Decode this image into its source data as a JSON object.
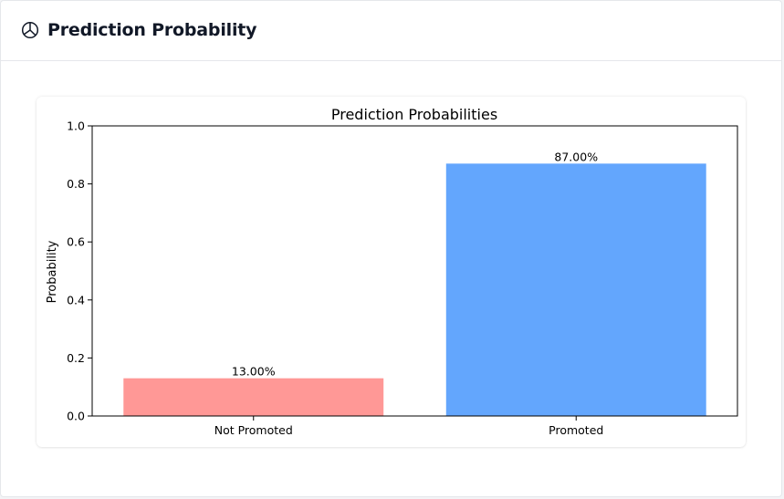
{
  "header": {
    "title": "Prediction Probability",
    "icon": "pie-chart-icon"
  },
  "chart_data": {
    "type": "bar",
    "title": "Prediction Probabilities",
    "xlabel": "",
    "ylabel": "Probability",
    "categories": [
      "Not Promoted",
      "Promoted"
    ],
    "values": [
      0.13,
      0.87
    ],
    "data_labels": [
      "13.00%",
      "87.00%"
    ],
    "colors": [
      "#ff9896",
      "#63a6fd"
    ],
    "ylim": [
      0,
      1.0
    ],
    "yticks": [
      "0.0",
      "0.2",
      "0.4",
      "0.6",
      "0.8",
      "1.0"
    ],
    "grid": false
  }
}
